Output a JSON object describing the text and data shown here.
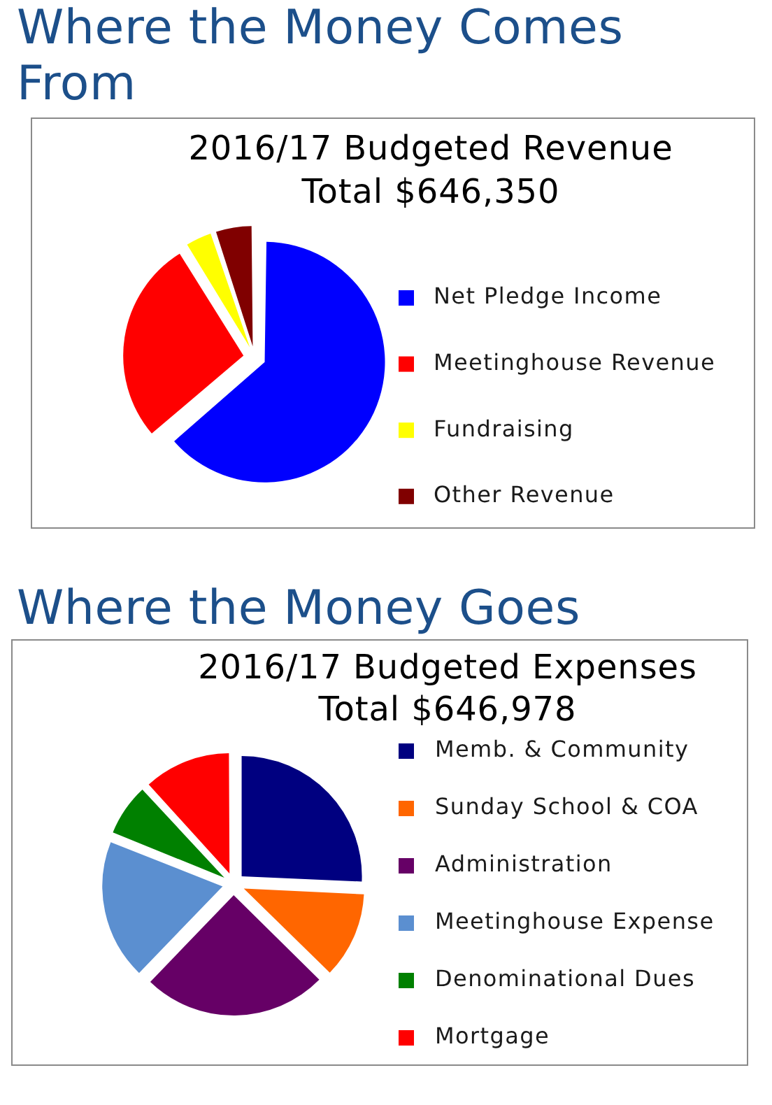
{
  "chart_data": [
    {
      "type": "pie",
      "title": "Where the Money Comes From",
      "subtitle": "2016/17 Budgeted Revenue",
      "annotations": [
        "Total $646,350"
      ],
      "categories": [
        "Net Pledge Income",
        "Meetinghouse Revenue",
        "Fundraising",
        "Other Revenue"
      ],
      "values": [
        63.8,
        27.3,
        3.8,
        5.1
      ],
      "colors": [
        "#0000ff",
        "#ff0000",
        "#ffff00",
        "#800000"
      ],
      "legend": "right"
    },
    {
      "type": "pie",
      "title": "Where the Money Goes",
      "subtitle": "2016/17 Budgeted Expenses",
      "annotations": [
        "Total $646,978"
      ],
      "categories": [
        "Memb. & Community",
        "Sunday School & COA",
        "Administration",
        "Meetinghouse Expense",
        "Denominational Dues",
        "Mortgage"
      ],
      "values": [
        25.7,
        11.7,
        24.8,
        18.8,
        7.2,
        11.8
      ],
      "colors": [
        "#000080",
        "#ff6600",
        "#660066",
        "#5b8fd0",
        "#008000",
        "#ff0000"
      ],
      "legend": "right"
    }
  ]
}
